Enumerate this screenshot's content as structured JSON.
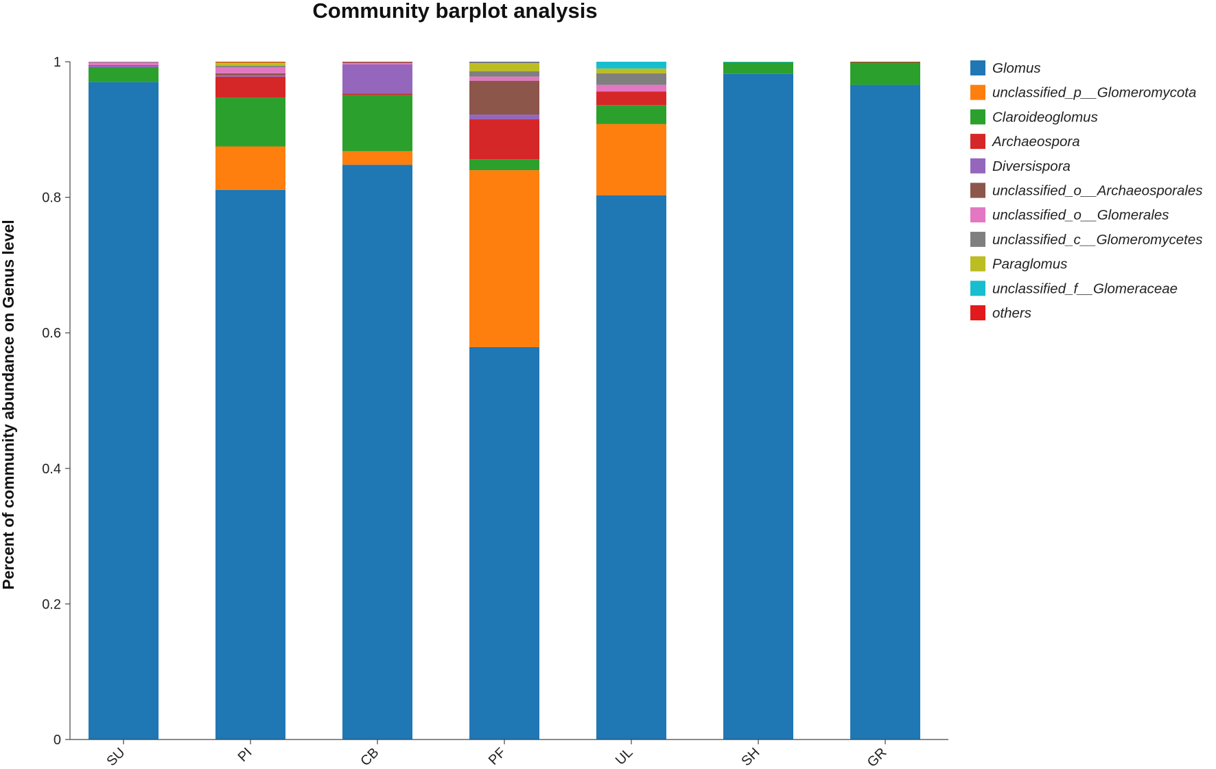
{
  "chart_data": {
    "type": "bar",
    "stacked": true,
    "title": "Community barplot analysis",
    "xlabel": "",
    "ylabel": "Percent of community abundance on Genus level",
    "ylim": [
      0,
      1
    ],
    "yticks": [
      0,
      0.2,
      0.4,
      0.6,
      0.8,
      1
    ],
    "ytick_labels": [
      "0",
      "0.2",
      "0.4",
      "0.6",
      "0.8",
      "1"
    ],
    "categories": [
      "SU",
      "PI",
      "CB",
      "PF",
      "UL",
      "SH",
      "GR"
    ],
    "legend_position": "right",
    "grid": false,
    "series": [
      {
        "name": "Glomus",
        "color": "#1f77b4",
        "values": [
          0.97,
          0.811,
          0.848,
          0.579,
          0.803,
          0.982,
          0.966
        ]
      },
      {
        "name": "unclassified_p__Glomeromycota",
        "color": "#ff7f0e",
        "values": [
          0.0,
          0.064,
          0.02,
          0.261,
          0.105,
          0.0,
          0.0
        ]
      },
      {
        "name": "Claroideoglomus",
        "color": "#2ca02c",
        "values": [
          0.022,
          0.072,
          0.083,
          0.016,
          0.028,
          0.017,
          0.033
        ]
      },
      {
        "name": "Archaeospora",
        "color": "#d62728",
        "values": [
          0.0,
          0.031,
          0.002,
          0.059,
          0.02,
          0.0,
          0.0
        ]
      },
      {
        "name": "Diversispora",
        "color": "#9467bd",
        "values": [
          0.002,
          0.002,
          0.043,
          0.007,
          0.0,
          0.0,
          0.0
        ]
      },
      {
        "name": "unclassified_o__Archaeosporales",
        "color": "#8c564b",
        "values": [
          0.001,
          0.003,
          0.0,
          0.05,
          0.0,
          0.0,
          0.0
        ]
      },
      {
        "name": "unclassified_o__Glomerales",
        "color": "#e377c2",
        "values": [
          0.004,
          0.009,
          0.002,
          0.006,
          0.01,
          0.0,
          0.0
        ]
      },
      {
        "name": "unclassified_c__Glomeromycetes",
        "color": "#7f7f7f",
        "values": [
          0.001,
          0.002,
          0.001,
          0.008,
          0.017,
          0.0,
          0.0
        ]
      },
      {
        "name": "Paraglomus",
        "color": "#bcbd22",
        "values": [
          0.0,
          0.005,
          0.0,
          0.012,
          0.007,
          0.0,
          0.0
        ]
      },
      {
        "name": "unclassified_f__Glomeraceae",
        "color": "#17becf",
        "values": [
          0.0,
          0.0,
          0.0,
          0.001,
          0.01,
          0.001,
          0.0
        ]
      },
      {
        "name": "others",
        "color": "#e31a1c",
        "values": [
          0.0,
          0.001,
          0.001,
          0.001,
          0.0,
          0.0,
          0.001
        ]
      }
    ]
  }
}
